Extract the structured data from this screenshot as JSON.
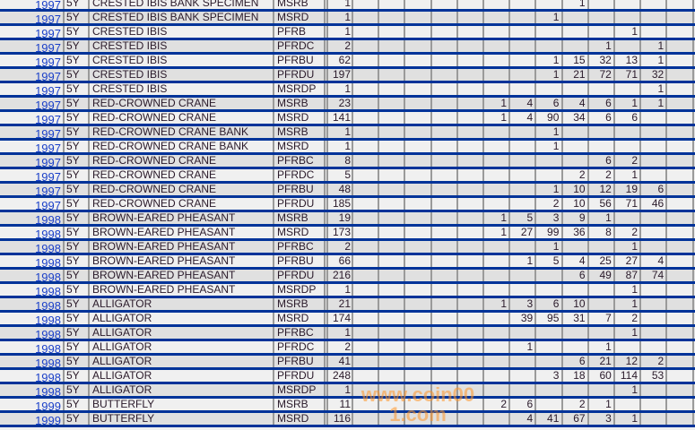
{
  "watermark": "www.coin001.com",
  "colors": {
    "row_border": "#003399",
    "row_light": "#f0f0f0",
    "row_dark": "#e0e0e0",
    "link": "#1a3fc8",
    "column_divider": "#9a9a9a"
  },
  "rows": [
    {
      "year": "1997",
      "term": "5Y",
      "name": "CRESTED IBIS BANK SPECIMEN",
      "type": "MSRB",
      "total": "1",
      "counts": [
        null,
        null,
        null,
        null,
        null,
        null,
        null,
        null,
        "1",
        null,
        null,
        null,
        null
      ]
    },
    {
      "year": "1997",
      "term": "5Y",
      "name": "CRESTED IBIS BANK SPECIMEN",
      "type": "MSRD",
      "total": "1",
      "counts": [
        null,
        null,
        null,
        null,
        null,
        null,
        null,
        "1",
        null,
        null,
        null,
        null,
        null
      ]
    },
    {
      "year": "1997",
      "term": "5Y",
      "name": "CRESTED IBIS",
      "type": "PFRB",
      "total": "1",
      "counts": [
        null,
        null,
        null,
        null,
        null,
        null,
        null,
        null,
        null,
        null,
        "1",
        null,
        null
      ]
    },
    {
      "year": "1997",
      "term": "5Y",
      "name": "CRESTED IBIS",
      "type": "PFRDC",
      "total": "2",
      "counts": [
        null,
        null,
        null,
        null,
        null,
        null,
        null,
        null,
        null,
        "1",
        null,
        "1",
        null
      ]
    },
    {
      "year": "1997",
      "term": "5Y",
      "name": "CRESTED IBIS",
      "type": "PFRBU",
      "total": "62",
      "counts": [
        null,
        null,
        null,
        null,
        null,
        null,
        null,
        "1",
        "15",
        "32",
        "13",
        "1",
        null
      ]
    },
    {
      "year": "1997",
      "term": "5Y",
      "name": "CRESTED IBIS",
      "type": "PFRDU",
      "total": "197",
      "counts": [
        null,
        null,
        null,
        null,
        null,
        null,
        null,
        "1",
        "21",
        "72",
        "71",
        "32",
        null
      ]
    },
    {
      "year": "1997",
      "term": "5Y",
      "name": "CRESTED IBIS",
      "type": "MSRDP",
      "total": "1",
      "counts": [
        null,
        null,
        null,
        null,
        null,
        null,
        null,
        null,
        null,
        null,
        null,
        "1",
        null
      ]
    },
    {
      "year": "1997",
      "term": "5Y",
      "name": "RED-CROWNED CRANE",
      "type": "MSRB",
      "total": "23",
      "counts": [
        null,
        null,
        null,
        null,
        null,
        "1",
        "4",
        "6",
        "4",
        "6",
        "1",
        "1",
        null
      ]
    },
    {
      "year": "1997",
      "term": "5Y",
      "name": "RED-CROWNED CRANE",
      "type": "MSRD",
      "total": "141",
      "counts": [
        null,
        null,
        null,
        null,
        null,
        "1",
        "4",
        "90",
        "34",
        "6",
        "6",
        null,
        null
      ]
    },
    {
      "year": "1997",
      "term": "5Y",
      "name": "RED-CROWNED CRANE BANK",
      "type": "MSRB",
      "total": "1",
      "counts": [
        null,
        null,
        null,
        null,
        null,
        null,
        null,
        "1",
        null,
        null,
        null,
        null,
        null
      ]
    },
    {
      "year": "1997",
      "term": "5Y",
      "name": "RED-CROWNED CRANE BANK",
      "type": "MSRD",
      "total": "1",
      "counts": [
        null,
        null,
        null,
        null,
        null,
        null,
        null,
        "1",
        null,
        null,
        null,
        null,
        null
      ]
    },
    {
      "year": "1997",
      "term": "5Y",
      "name": "RED-CROWNED CRANE",
      "type": "PFRBC",
      "total": "8",
      "counts": [
        null,
        null,
        null,
        null,
        null,
        null,
        null,
        null,
        null,
        "6",
        "2",
        null,
        null
      ]
    },
    {
      "year": "1997",
      "term": "5Y",
      "name": "RED-CROWNED CRANE",
      "type": "PFRDC",
      "total": "5",
      "counts": [
        null,
        null,
        null,
        null,
        null,
        null,
        null,
        null,
        "2",
        "2",
        "1",
        null,
        null
      ]
    },
    {
      "year": "1997",
      "term": "5Y",
      "name": "RED-CROWNED CRANE",
      "type": "PFRBU",
      "total": "48",
      "counts": [
        null,
        null,
        null,
        null,
        null,
        null,
        null,
        "1",
        "10",
        "12",
        "19",
        "6",
        null
      ]
    },
    {
      "year": "1997",
      "term": "5Y",
      "name": "RED-CROWNED CRANE",
      "type": "PFRDU",
      "total": "185",
      "counts": [
        null,
        null,
        null,
        null,
        null,
        null,
        null,
        "2",
        "10",
        "56",
        "71",
        "46",
        null
      ]
    },
    {
      "year": "1998",
      "term": "5Y",
      "name": "BROWN-EARED PHEASANT",
      "type": "MSRB",
      "total": "19",
      "counts": [
        null,
        null,
        null,
        null,
        null,
        "1",
        "5",
        "3",
        "9",
        "1",
        null,
        null,
        null
      ]
    },
    {
      "year": "1998",
      "term": "5Y",
      "name": "BROWN-EARED PHEASANT",
      "type": "MSRD",
      "total": "173",
      "counts": [
        null,
        null,
        null,
        null,
        null,
        "1",
        "27",
        "99",
        "36",
        "8",
        "2",
        null,
        null
      ]
    },
    {
      "year": "1998",
      "term": "5Y",
      "name": "BROWN-EARED PHEASANT",
      "type": "PFRBC",
      "total": "2",
      "counts": [
        null,
        null,
        null,
        null,
        null,
        null,
        null,
        "1",
        null,
        null,
        "1",
        null,
        null
      ]
    },
    {
      "year": "1998",
      "term": "5Y",
      "name": "BROWN-EARED PHEASANT",
      "type": "PFRBU",
      "total": "66",
      "counts": [
        null,
        null,
        null,
        null,
        null,
        null,
        "1",
        "5",
        "4",
        "25",
        "27",
        "4",
        null
      ]
    },
    {
      "year": "1998",
      "term": "5Y",
      "name": "BROWN-EARED PHEASANT",
      "type": "PFRDU",
      "total": "216",
      "counts": [
        null,
        null,
        null,
        null,
        null,
        null,
        null,
        null,
        "6",
        "49",
        "87",
        "74",
        null
      ]
    },
    {
      "year": "1998",
      "term": "5Y",
      "name": "BROWN-EARED PHEASANT",
      "type": "MSRDP",
      "total": "1",
      "counts": [
        null,
        null,
        null,
        null,
        null,
        null,
        null,
        null,
        null,
        null,
        "1",
        null,
        null
      ]
    },
    {
      "year": "1998",
      "term": "5Y",
      "name": "ALLIGATOR",
      "type": "MSRB",
      "total": "21",
      "counts": [
        null,
        null,
        null,
        null,
        null,
        "1",
        "3",
        "6",
        "10",
        null,
        "1",
        null,
        null
      ]
    },
    {
      "year": "1998",
      "term": "5Y",
      "name": "ALLIGATOR",
      "type": "MSRD",
      "total": "174",
      "counts": [
        null,
        null,
        null,
        null,
        null,
        null,
        "39",
        "95",
        "31",
        "7",
        "2",
        null,
        null
      ]
    },
    {
      "year": "1998",
      "term": "5Y",
      "name": "ALLIGATOR",
      "type": "PFRBC",
      "total": "1",
      "counts": [
        null,
        null,
        null,
        null,
        null,
        null,
        null,
        null,
        null,
        null,
        "1",
        null,
        null
      ]
    },
    {
      "year": "1998",
      "term": "5Y",
      "name": "ALLIGATOR",
      "type": "PFRDC",
      "total": "2",
      "counts": [
        null,
        null,
        null,
        null,
        null,
        null,
        "1",
        null,
        null,
        "1",
        null,
        null,
        null
      ]
    },
    {
      "year": "1998",
      "term": "5Y",
      "name": "ALLIGATOR",
      "type": "PFRBU",
      "total": "41",
      "counts": [
        null,
        null,
        null,
        null,
        null,
        null,
        null,
        null,
        "6",
        "21",
        "12",
        "2",
        null
      ]
    },
    {
      "year": "1998",
      "term": "5Y",
      "name": "ALLIGATOR",
      "type": "PFRDU",
      "total": "248",
      "counts": [
        null,
        null,
        null,
        null,
        null,
        null,
        null,
        "3",
        "18",
        "60",
        "114",
        "53",
        null
      ]
    },
    {
      "year": "1998",
      "term": "5Y",
      "name": "ALLIGATOR",
      "type": "MSRDP",
      "total": "1",
      "counts": [
        null,
        null,
        null,
        null,
        null,
        null,
        null,
        null,
        null,
        null,
        "1",
        null,
        null
      ]
    },
    {
      "year": "1999",
      "term": "5Y",
      "name": "BUTTERFLY",
      "type": "MSRB",
      "total": "11",
      "counts": [
        null,
        null,
        null,
        null,
        null,
        "2",
        "6",
        null,
        "2",
        "1",
        null,
        null,
        null
      ]
    },
    {
      "year": "1999",
      "term": "5Y",
      "name": "BUTTERFLY",
      "type": "MSRD",
      "total": "116",
      "counts": [
        null,
        null,
        null,
        null,
        null,
        null,
        "4",
        "41",
        "67",
        "3",
        "1",
        null,
        null
      ]
    }
  ]
}
